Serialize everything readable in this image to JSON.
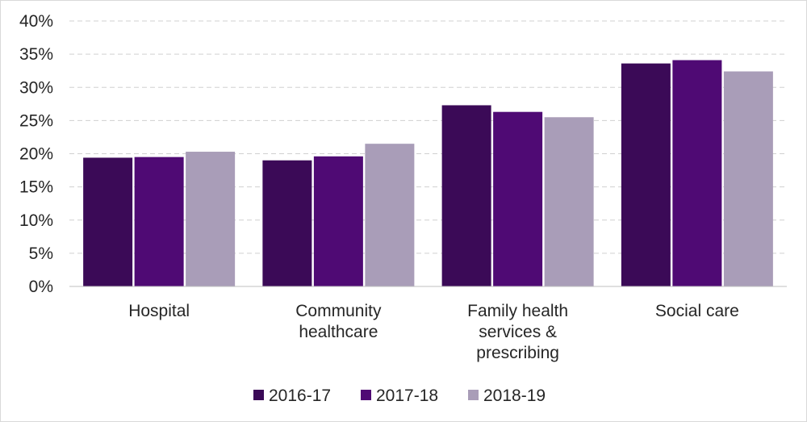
{
  "chart_data": {
    "type": "bar",
    "title": "",
    "xlabel": "",
    "ylabel": "",
    "categories": [
      [
        "Hospital"
      ],
      [
        "Community",
        "healthcare"
      ],
      [
        "Family health",
        "services &",
        "prescribing"
      ],
      [
        "Social care"
      ]
    ],
    "series": [
      {
        "name": "2016-17",
        "color": "#3b0a57",
        "values": [
          0.194,
          0.19,
          0.273,
          0.336
        ]
      },
      {
        "name": "2017-18",
        "color": "#4f0a74",
        "values": [
          0.195,
          0.196,
          0.263,
          0.341
        ]
      },
      {
        "name": "2018-19",
        "color": "#a99db8",
        "values": [
          0.203,
          0.215,
          0.255,
          0.324
        ]
      }
    ],
    "ylim": [
      0,
      0.4
    ],
    "yticks": [
      0,
      0.05,
      0.1,
      0.15,
      0.2,
      0.25,
      0.3,
      0.35,
      0.4
    ],
    "ytick_labels": [
      "0%",
      "5%",
      "10%",
      "15%",
      "20%",
      "25%",
      "30%",
      "35%",
      "40%"
    ],
    "grid": true,
    "legend_position": "bottom"
  }
}
